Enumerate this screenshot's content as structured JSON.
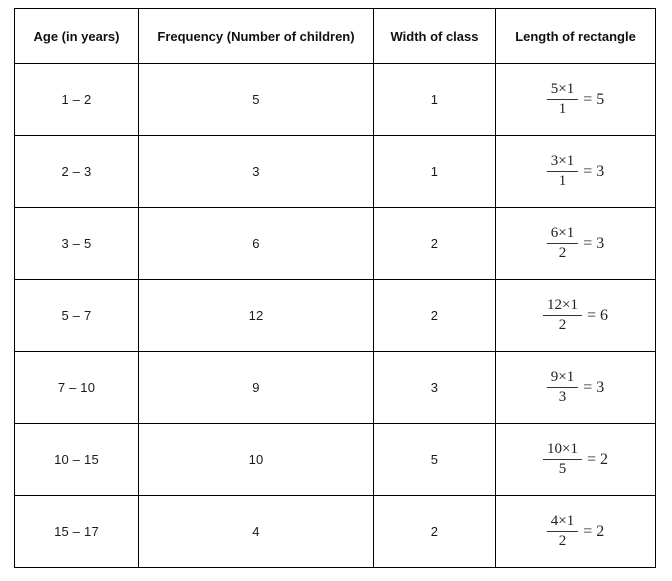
{
  "page": {
    "background_color": "#ffffff",
    "border_color": "#000000",
    "text_color": "#1a1a1a"
  },
  "table": {
    "headers": {
      "age": "Age (in years)",
      "frequency": "Frequency (Number of children)",
      "class_width": "Width of class",
      "rect_length": "Length of rectangle"
    },
    "rows": [
      {
        "age": "1 – 2",
        "frequency": "5",
        "class_width": "1",
        "fraction_numerator": "5×1",
        "fraction_denominator": "1",
        "fraction_result": "= 5"
      },
      {
        "age": "2 – 3",
        "frequency": "3",
        "class_width": "1",
        "fraction_numerator": "3×1",
        "fraction_denominator": "1",
        "fraction_result": "= 3"
      },
      {
        "age": "3 – 5",
        "frequency": "6",
        "class_width": "2",
        "fraction_numerator": "6×1",
        "fraction_denominator": "2",
        "fraction_result": "= 3"
      },
      {
        "age": "5 – 7",
        "frequency": "12",
        "class_width": "2",
        "fraction_numerator": "12×1",
        "fraction_denominator": "2",
        "fraction_result": "= 6"
      },
      {
        "age": "7 – 10",
        "frequency": "9",
        "class_width": "3",
        "fraction_numerator": "9×1",
        "fraction_denominator": "3",
        "fraction_result": "= 3"
      },
      {
        "age": "10 – 15",
        "frequency": "10",
        "class_width": "5",
        "fraction_numerator": "10×1",
        "fraction_denominator": "5",
        "fraction_result": "= 2"
      },
      {
        "age": "15 – 17",
        "frequency": "4",
        "class_width": "2",
        "fraction_numerator": "4×1",
        "fraction_denominator": "2",
        "fraction_result": "= 2"
      }
    ]
  },
  "chart_data": {
    "type": "table",
    "title": "Length of rectangle calculation for histogram with unequal class widths",
    "columns": [
      "Age (in years)",
      "Frequency (Number of children)",
      "Width of class",
      "Length of rectangle"
    ],
    "rows": [
      [
        "1 – 2",
        5,
        1,
        "5×1/1 = 5"
      ],
      [
        "2 – 3",
        3,
        1,
        "3×1/1 = 3"
      ],
      [
        "3 – 5",
        6,
        2,
        "6×1/2 = 3"
      ],
      [
        "5 – 7",
        12,
        2,
        "12×1/2 = 6"
      ],
      [
        "7 – 10",
        9,
        3,
        "9×1/3 = 3"
      ],
      [
        "10 – 15",
        10,
        5,
        "10×1/5 = 2"
      ],
      [
        "15 – 17",
        4,
        2,
        "4×1/2 = 2"
      ]
    ]
  }
}
